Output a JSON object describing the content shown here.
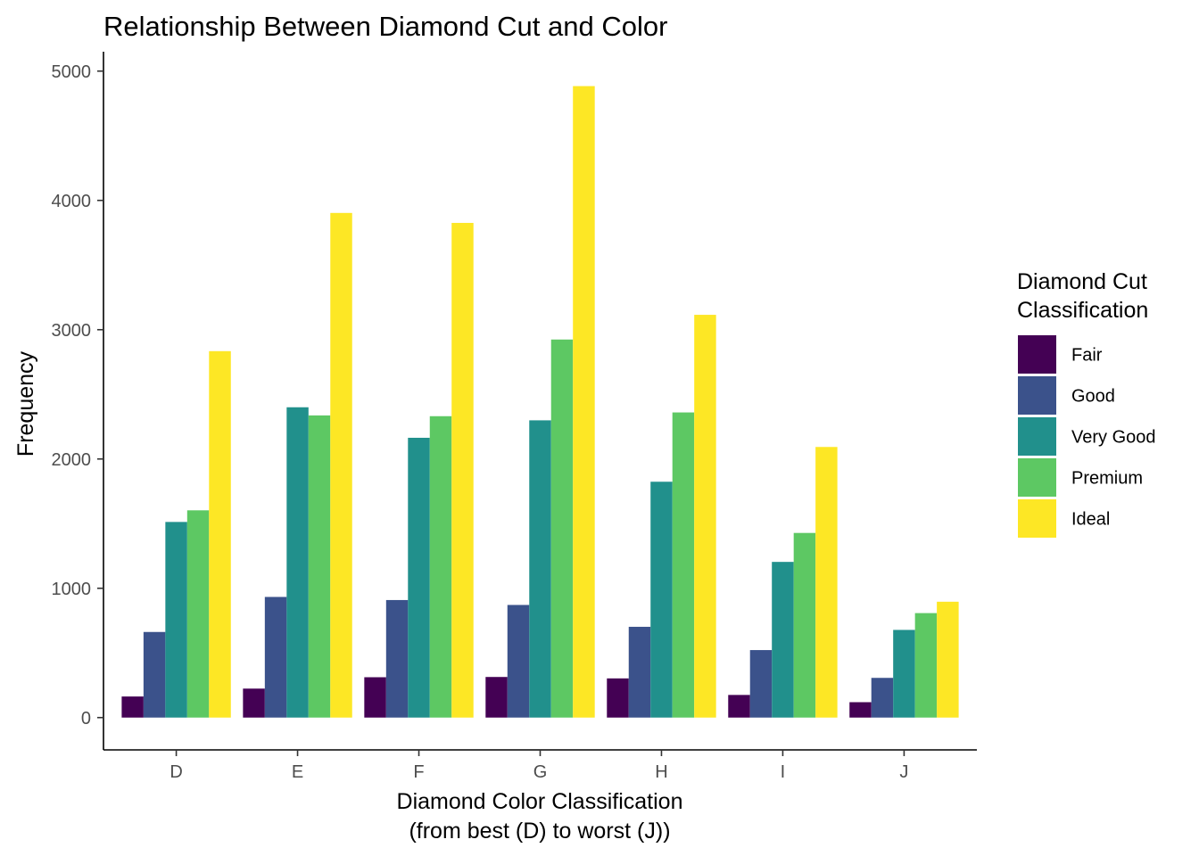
{
  "chart_data": {
    "type": "bar",
    "title": "Relationship Between Diamond Cut and Color",
    "xlabel_line1": "Diamond Color Classification",
    "xlabel_line2": "(from best (D) to worst (J))",
    "ylabel": "Frequency",
    "categories": [
      "D",
      "E",
      "F",
      "G",
      "H",
      "I",
      "J"
    ],
    "y_ticks": [
      0,
      1000,
      2000,
      3000,
      4000,
      5000
    ],
    "ylim": [
      -250,
      5150
    ],
    "grid": false,
    "legend": {
      "title_line1": "Diamond Cut",
      "title_line2": "Classification",
      "position": "right"
    },
    "series": [
      {
        "name": "Fair",
        "color": "#440154",
        "values": [
          163,
          224,
          312,
          314,
          303,
          175,
          119
        ]
      },
      {
        "name": "Good",
        "color": "#3b528b",
        "values": [
          662,
          933,
          909,
          871,
          702,
          522,
          307
        ]
      },
      {
        "name": "Very Good",
        "color": "#21908c",
        "values": [
          1513,
          2400,
          2164,
          2299,
          1824,
          1204,
          678
        ]
      },
      {
        "name": "Premium",
        "color": "#5dc863",
        "values": [
          1603,
          2337,
          2331,
          2924,
          2360,
          1428,
          808
        ]
      },
      {
        "name": "Ideal",
        "color": "#fde725",
        "values": [
          2834,
          3903,
          3826,
          4884,
          3115,
          2093,
          896
        ]
      }
    ]
  }
}
